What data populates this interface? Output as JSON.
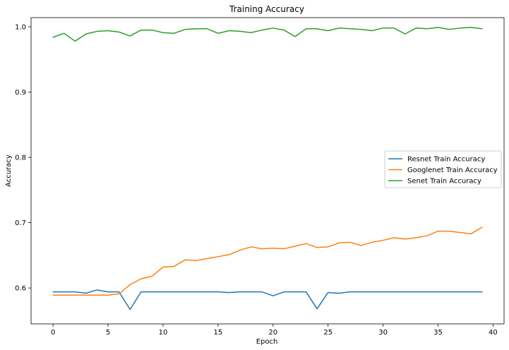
{
  "chart_data": {
    "type": "line",
    "title": "Training Accuracy",
    "xlabel": "Epoch",
    "ylabel": "Accuracy",
    "xlim": [
      -2,
      41
    ],
    "ylim": [
      0.545,
      1.014
    ],
    "xticks": [
      0,
      5,
      10,
      15,
      20,
      25,
      30,
      35,
      40
    ],
    "yticks": [
      0.6,
      0.7,
      0.8,
      0.9,
      1.0
    ],
    "xtick_labels": [
      "0",
      "5",
      "10",
      "15",
      "20",
      "25",
      "30",
      "35",
      "40"
    ],
    "ytick_labels": [
      "0.6",
      "0.7",
      "0.8",
      "0.9",
      "1.0"
    ],
    "grid": false,
    "legend_position": "center-right",
    "x": [
      0,
      1,
      2,
      3,
      4,
      5,
      6,
      7,
      8,
      9,
      10,
      11,
      12,
      13,
      14,
      15,
      16,
      17,
      18,
      19,
      20,
      21,
      22,
      23,
      24,
      25,
      26,
      27,
      28,
      29,
      30,
      31,
      32,
      33,
      34,
      35,
      36,
      37,
      38,
      39
    ],
    "series": [
      {
        "name": "Resnet Train Accuracy",
        "color": "#1f77b4",
        "values": [
          0.594,
          0.594,
          0.594,
          0.592,
          0.597,
          0.594,
          0.594,
          0.567,
          0.594,
          0.594,
          0.594,
          0.594,
          0.594,
          0.594,
          0.594,
          0.594,
          0.593,
          0.594,
          0.594,
          0.594,
          0.588,
          0.594,
          0.594,
          0.594,
          0.568,
          0.593,
          0.592,
          0.594,
          0.594,
          0.594,
          0.594,
          0.594,
          0.594,
          0.594,
          0.594,
          0.594,
          0.594,
          0.594,
          0.594,
          0.594
        ]
      },
      {
        "name": "Googlenet Train Accuracy",
        "color": "#ff7f0e",
        "values": [
          0.589,
          0.589,
          0.589,
          0.589,
          0.589,
          0.589,
          0.591,
          0.605,
          0.614,
          0.618,
          0.632,
          0.633,
          0.643,
          0.642,
          0.645,
          0.648,
          0.651,
          0.658,
          0.663,
          0.66,
          0.661,
          0.66,
          0.664,
          0.668,
          0.662,
          0.663,
          0.669,
          0.67,
          0.665,
          0.67,
          0.673,
          0.677,
          0.675,
          0.677,
          0.68,
          0.687,
          0.687,
          0.685,
          0.683,
          0.693
        ]
      },
      {
        "name": "Senet Train Accuracy",
        "color": "#2ca02c",
        "values": [
          0.984,
          0.99,
          0.978,
          0.989,
          0.993,
          0.994,
          0.992,
          0.986,
          0.995,
          0.995,
          0.991,
          0.99,
          0.996,
          0.997,
          0.997,
          0.99,
          0.994,
          0.993,
          0.991,
          0.995,
          0.998,
          0.995,
          0.985,
          0.997,
          0.997,
          0.994,
          0.998,
          0.997,
          0.996,
          0.994,
          0.998,
          0.998,
          0.989,
          0.998,
          0.997,
          0.999,
          0.996,
          0.998,
          0.999,
          0.997
        ]
      }
    ]
  }
}
